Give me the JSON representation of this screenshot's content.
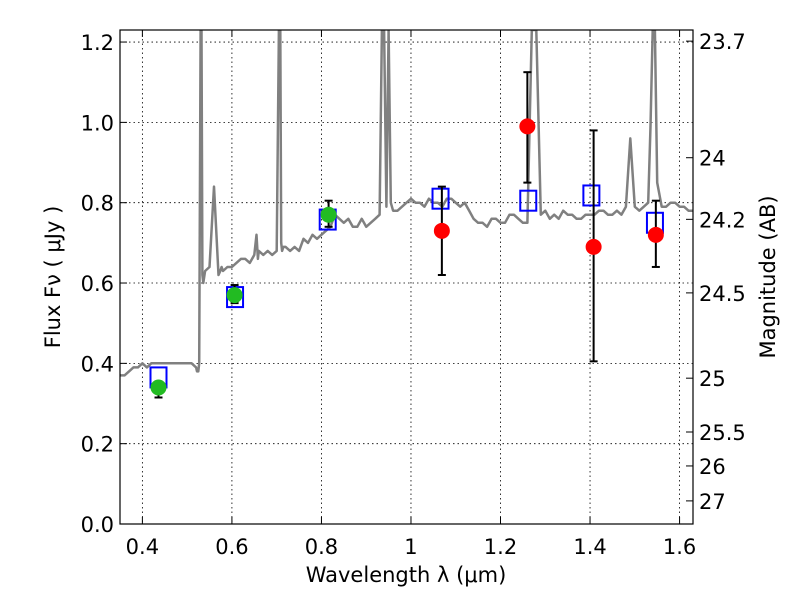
{
  "chart_data": {
    "type": "scatter",
    "xlabel": "Wavelength  λ (μm)",
    "ylabel_left": "Flux  Fν  ( μJy )",
    "ylabel_right": "Magnitude (AB)",
    "xlim": [
      0.35,
      1.63
    ],
    "ylim": [
      0.0,
      1.23
    ],
    "grid": true,
    "x_ticks": [
      {
        "value": 0.4,
        "label": "0.4"
      },
      {
        "value": 0.6,
        "label": "0.6"
      },
      {
        "value": 0.8,
        "label": "0.8"
      },
      {
        "value": 1.0,
        "label": "1"
      },
      {
        "value": 1.2,
        "label": "1.2"
      },
      {
        "value": 1.4,
        "label": "1.4"
      },
      {
        "value": 1.6,
        "label": "1.6"
      }
    ],
    "y_ticks": [
      {
        "value": 0.0,
        "label": "0.0"
      },
      {
        "value": 0.2,
        "label": "0.2"
      },
      {
        "value": 0.4,
        "label": "0.4"
      },
      {
        "value": 0.6,
        "label": "0.6"
      },
      {
        "value": 0.8,
        "label": "0.8"
      },
      {
        "value": 1.0,
        "label": "1.0"
      },
      {
        "value": 1.2,
        "label": "1.2"
      }
    ],
    "right_ticks": [
      {
        "mag": 23.7,
        "label": "23.7"
      },
      {
        "mag": 24.0,
        "label": "24"
      },
      {
        "mag": 24.2,
        "label": "24.2"
      },
      {
        "mag": 24.5,
        "label": "24.5"
      },
      {
        "mag": 25.0,
        "label": "25"
      },
      {
        "mag": 25.5,
        "label": "25.5"
      },
      {
        "mag": 26.0,
        "label": "26"
      },
      {
        "mag": 27.0,
        "label": "27"
      }
    ],
    "colors": {
      "spectrum": "#808080",
      "model": "#0000ff",
      "optical": "#22bb22",
      "infrared": "#ff0000",
      "errorbar": "#000000"
    },
    "spectrum": {
      "x": [
        0.35,
        0.36,
        0.37,
        0.38,
        0.39,
        0.4,
        0.41,
        0.42,
        0.43,
        0.44,
        0.45,
        0.46,
        0.47,
        0.48,
        0.49,
        0.5,
        0.51,
        0.52,
        0.522,
        0.525,
        0.527,
        0.53,
        0.532,
        0.534,
        0.536,
        0.54,
        0.55,
        0.56,
        0.57,
        0.574,
        0.577,
        0.58,
        0.59,
        0.6,
        0.61,
        0.62,
        0.63,
        0.64,
        0.65,
        0.655,
        0.658,
        0.66,
        0.67,
        0.68,
        0.69,
        0.7,
        0.705,
        0.708,
        0.71,
        0.712,
        0.715,
        0.72,
        0.73,
        0.74,
        0.75,
        0.76,
        0.77,
        0.78,
        0.79,
        0.8,
        0.81,
        0.82,
        0.83,
        0.84,
        0.85,
        0.86,
        0.87,
        0.88,
        0.89,
        0.895,
        0.9,
        0.91,
        0.92,
        0.93,
        0.935,
        0.94,
        0.945,
        0.95,
        0.955,
        0.96,
        0.97,
        0.98,
        0.99,
        1.0,
        1.01,
        1.02,
        1.03,
        1.04,
        1.05,
        1.06,
        1.07,
        1.08,
        1.09,
        1.1,
        1.11,
        1.12,
        1.13,
        1.14,
        1.15,
        1.16,
        1.17,
        1.18,
        1.19,
        1.2,
        1.21,
        1.22,
        1.23,
        1.24,
        1.25,
        1.26,
        1.27,
        1.28,
        1.29,
        1.3,
        1.31,
        1.32,
        1.33,
        1.34,
        1.35,
        1.36,
        1.37,
        1.38,
        1.39,
        1.4,
        1.41,
        1.42,
        1.43,
        1.44,
        1.45,
        1.46,
        1.47,
        1.48,
        1.49,
        1.5,
        1.51,
        1.52,
        1.53,
        1.535,
        1.54,
        1.545,
        1.55,
        1.56,
        1.57,
        1.58,
        1.59,
        1.6,
        1.61,
        1.62,
        1.63
      ],
      "y": [
        0.37,
        0.37,
        0.38,
        0.39,
        0.39,
        0.4,
        0.39,
        0.4,
        0.4,
        0.4,
        0.4,
        0.4,
        0.4,
        0.4,
        0.4,
        0.4,
        0.4,
        0.39,
        0.38,
        0.38,
        0.4,
        1.23,
        1.23,
        0.62,
        0.6,
        0.63,
        0.64,
        0.84,
        0.62,
        0.63,
        0.64,
        0.63,
        0.64,
        0.64,
        0.65,
        0.66,
        0.66,
        0.65,
        0.67,
        0.72,
        0.66,
        0.68,
        0.67,
        0.68,
        0.67,
        0.68,
        1.23,
        1.23,
        0.7,
        0.68,
        0.69,
        0.69,
        0.68,
        0.69,
        0.68,
        0.71,
        0.7,
        0.72,
        0.71,
        0.72,
        0.73,
        0.74,
        0.77,
        0.76,
        0.75,
        0.76,
        0.74,
        0.74,
        0.76,
        0.75,
        0.74,
        0.75,
        0.76,
        0.77,
        1.23,
        1.23,
        0.79,
        1.23,
        0.8,
        0.78,
        0.78,
        0.79,
        0.8,
        0.81,
        0.8,
        0.8,
        0.79,
        0.81,
        0.8,
        0.8,
        0.79,
        0.81,
        0.81,
        0.8,
        0.79,
        0.8,
        0.78,
        0.76,
        0.75,
        0.75,
        0.74,
        0.76,
        0.76,
        0.75,
        0.75,
        0.77,
        0.77,
        0.76,
        0.75,
        0.75,
        1.23,
        1.23,
        0.77,
        0.78,
        0.76,
        0.77,
        0.76,
        0.78,
        0.77,
        0.77,
        0.76,
        0.76,
        0.77,
        0.77,
        0.77,
        0.78,
        0.78,
        0.77,
        0.77,
        0.78,
        0.77,
        0.79,
        0.96,
        0.79,
        0.78,
        0.79,
        0.8,
        0.99,
        1.23,
        1.23,
        0.85,
        0.79,
        0.79,
        0.8,
        0.8,
        0.79,
        0.79,
        0.78,
        0.78
      ]
    },
    "series": [
      {
        "role": "model",
        "marker": "open-square",
        "x": [
          0.436,
          0.607,
          0.814,
          1.066,
          1.262,
          1.403,
          1.545
        ],
        "y": [
          0.365,
          0.565,
          0.758,
          0.81,
          0.805,
          0.818,
          0.75
        ]
      },
      {
        "role": "optical",
        "marker": "filled-circle",
        "x": [
          0.436,
          0.606,
          0.816
        ],
        "y": [
          0.34,
          0.57,
          0.77
        ],
        "err_low": [
          0.025,
          0.02,
          0.03
        ],
        "err_high": [
          0.015,
          0.025,
          0.035
        ]
      },
      {
        "role": "infrared",
        "marker": "filled-circle",
        "x": [
          1.069,
          1.26,
          1.408,
          1.547
        ],
        "y": [
          0.73,
          0.99,
          0.69,
          0.72
        ],
        "err_low": [
          0.11,
          0.14,
          0.285,
          0.08
        ],
        "err_high": [
          0.11,
          0.135,
          0.29,
          0.085
        ]
      }
    ]
  }
}
